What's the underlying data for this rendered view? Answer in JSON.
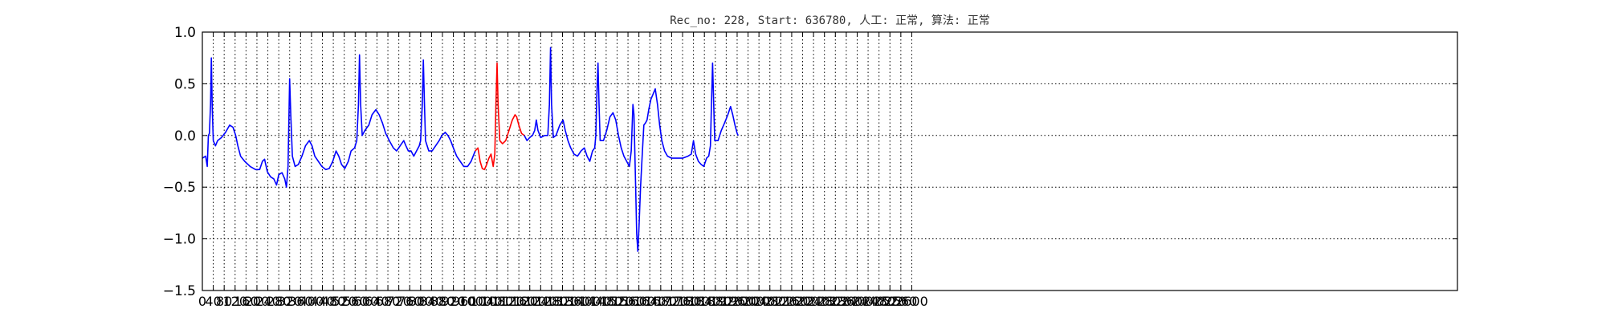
{
  "chart_data": {
    "type": "line",
    "title": "Rec_no: 228, Start: 636780, 人工: 正常, 算法: 正常",
    "xlabel": "",
    "ylabel": "",
    "xlim": [
      0,
      4600
    ],
    "ylim": [
      -1.5,
      1.0
    ],
    "grid": true,
    "yticks": [
      "−1.5",
      "−1.0",
      "−0.5",
      "0.0",
      "0.5",
      "1.0"
    ],
    "ytick_values": [
      -1.5,
      -1.0,
      -0.5,
      0.0,
      0.5,
      1.0
    ],
    "xticks": [
      "0",
      "40",
      "80",
      "120",
      "160",
      "200",
      "240",
      "280",
      "320",
      "360",
      "400",
      "440",
      "480",
      "520",
      "560",
      "600",
      "640",
      "680",
      "720",
      "760",
      "800",
      "840",
      "880",
      "920",
      "960",
      "1000",
      "1040",
      "1080",
      "1120",
      "1160",
      "1200",
      "1240",
      "1280",
      "1320",
      "1360",
      "1400",
      "1440",
      "1480",
      "1520",
      "1560",
      "1600",
      "1640",
      "1680",
      "1720",
      "1760",
      "1800",
      "1840",
      "1880",
      "1920",
      "1960",
      "2000",
      "2040",
      "2080",
      "2120",
      "2160",
      "2200",
      "2240",
      "2280",
      "2320",
      "2360",
      "2400",
      "2440",
      "2480",
      "2520",
      "2560",
      "2600"
    ],
    "xtick_values": [
      0,
      40,
      80,
      120,
      160,
      200,
      240,
      280,
      320,
      360,
      400,
      440,
      480,
      520,
      560,
      600,
      640,
      680,
      720,
      760,
      800,
      840,
      880,
      920,
      960,
      1000,
      1040,
      1080,
      1120,
      1160,
      1200,
      1240,
      1280,
      1320,
      1360,
      1400,
      1440,
      1480,
      1520,
      1560,
      1600,
      1640,
      1680,
      1720,
      1760,
      1800,
      1840,
      1880,
      1920,
      1960,
      2000,
      2040,
      2080,
      2120,
      2160,
      2200,
      2240,
      2280,
      2320,
      2360,
      2400,
      2440,
      2480,
      2520,
      2560,
      2600
    ],
    "series": [
      {
        "color": "#0000ff",
        "points": [
          [
            0,
            -0.22
          ],
          [
            12,
            -0.2
          ],
          [
            18,
            -0.3
          ],
          [
            22,
            0.0
          ],
          [
            26,
            0.02
          ],
          [
            30,
            0.3
          ],
          [
            33,
            0.75
          ],
          [
            36,
            0.3
          ],
          [
            40,
            -0.05
          ],
          [
            48,
            -0.1
          ],
          [
            56,
            -0.05
          ],
          [
            70,
            -0.02
          ],
          [
            85,
            0.03
          ],
          [
            100,
            0.1
          ],
          [
            112,
            0.08
          ],
          [
            122,
            0.0
          ],
          [
            130,
            -0.1
          ],
          [
            140,
            -0.2
          ],
          [
            155,
            -0.25
          ],
          [
            175,
            -0.3
          ],
          [
            195,
            -0.33
          ],
          [
            210,
            -0.33
          ],
          [
            220,
            -0.25
          ],
          [
            228,
            -0.23
          ],
          [
            238,
            -0.35
          ],
          [
            250,
            -0.4
          ],
          [
            262,
            -0.42
          ],
          [
            272,
            -0.48
          ],
          [
            280,
            -0.38
          ],
          [
            292,
            -0.36
          ],
          [
            302,
            -0.42
          ],
          [
            308,
            -0.5
          ],
          [
            314,
            -0.3
          ],
          [
            320,
            0.55
          ],
          [
            324,
            0.2
          ],
          [
            330,
            -0.2
          ],
          [
            340,
            -0.3
          ],
          [
            352,
            -0.28
          ],
          [
            365,
            -0.2
          ],
          [
            378,
            -0.1
          ],
          [
            392,
            -0.05
          ],
          [
            402,
            -0.1
          ],
          [
            412,
            -0.2
          ],
          [
            425,
            -0.25
          ],
          [
            438,
            -0.3
          ],
          [
            452,
            -0.33
          ],
          [
            465,
            -0.32
          ],
          [
            478,
            -0.25
          ],
          [
            490,
            -0.15
          ],
          [
            500,
            -0.2
          ],
          [
            510,
            -0.28
          ],
          [
            522,
            -0.32
          ],
          [
            535,
            -0.25
          ],
          [
            545,
            -0.15
          ],
          [
            558,
            -0.12
          ],
          [
            566,
            -0.05
          ],
          [
            572,
            0.3
          ],
          [
            576,
            0.78
          ],
          [
            580,
            0.3
          ],
          [
            586,
            0.0
          ],
          [
            596,
            0.05
          ],
          [
            610,
            0.1
          ],
          [
            622,
            0.2
          ],
          [
            636,
            0.25
          ],
          [
            648,
            0.2
          ],
          [
            660,
            0.12
          ],
          [
            672,
            0.02
          ],
          [
            685,
            -0.05
          ],
          [
            700,
            -0.12
          ],
          [
            712,
            -0.15
          ],
          [
            725,
            -0.1
          ],
          [
            738,
            -0.05
          ],
          [
            746,
            -0.1
          ],
          [
            755,
            -0.15
          ],
          [
            765,
            -0.15
          ],
          [
            775,
            -0.2
          ],
          [
            785,
            -0.15
          ],
          [
            795,
            -0.1
          ],
          [
            800,
            -0.05
          ],
          [
            806,
            0.3
          ],
          [
            810,
            0.73
          ],
          [
            814,
            0.3
          ],
          [
            818,
            -0.05
          ],
          [
            830,
            -0.15
          ],
          [
            842,
            -0.15
          ],
          [
            855,
            -0.1
          ],
          [
            868,
            -0.05
          ],
          [
            878,
            0.0
          ],
          [
            890,
            0.03
          ],
          [
            900,
            0.0
          ],
          [
            910,
            -0.05
          ],
          [
            920,
            -0.12
          ],
          [
            932,
            -0.2
          ],
          [
            945,
            -0.25
          ],
          [
            958,
            -0.3
          ],
          [
            972,
            -0.3
          ],
          [
            985,
            -0.25
          ],
          [
            1000,
            -0.15
          ]
        ]
      },
      {
        "color": "#ff0000",
        "points": [
          [
            1000,
            -0.15
          ],
          [
            1010,
            -0.12
          ],
          [
            1018,
            -0.25
          ],
          [
            1026,
            -0.32
          ],
          [
            1034,
            -0.33
          ],
          [
            1042,
            -0.28
          ],
          [
            1050,
            -0.22
          ],
          [
            1058,
            -0.18
          ],
          [
            1066,
            -0.3
          ],
          [
            1072,
            -0.18
          ],
          [
            1076,
            0.3
          ],
          [
            1080,
            0.7
          ],
          [
            1084,
            0.3
          ],
          [
            1090,
            -0.05
          ],
          [
            1100,
            -0.08
          ],
          [
            1112,
            -0.05
          ],
          [
            1124,
            0.05
          ],
          [
            1136,
            0.15
          ],
          [
            1146,
            0.2
          ],
          [
            1152,
            0.18
          ],
          [
            1160,
            0.1
          ],
          [
            1170,
            0.02
          ],
          [
            1180,
            0.0
          ]
        ]
      },
      {
        "color": "#0000ff",
        "points": [
          [
            1180,
            0.0
          ],
          [
            1190,
            -0.05
          ],
          [
            1200,
            -0.02
          ],
          [
            1210,
            0.0
          ],
          [
            1218,
            0.05
          ],
          [
            1224,
            0.15
          ],
          [
            1230,
            0.05
          ],
          [
            1240,
            -0.02
          ],
          [
            1255,
            0.0
          ],
          [
            1266,
            0.0
          ],
          [
            1272,
            0.3
          ],
          [
            1276,
            0.85
          ],
          [
            1280,
            0.3
          ],
          [
            1286,
            -0.02
          ],
          [
            1296,
            0.0
          ],
          [
            1310,
            0.1
          ],
          [
            1322,
            0.15
          ],
          [
            1330,
            0.05
          ],
          [
            1340,
            -0.05
          ],
          [
            1350,
            -0.12
          ],
          [
            1362,
            -0.18
          ],
          [
            1375,
            -0.2
          ],
          [
            1388,
            -0.15
          ],
          [
            1400,
            -0.12
          ],
          [
            1410,
            -0.2
          ],
          [
            1420,
            -0.25
          ],
          [
            1430,
            -0.15
          ],
          [
            1438,
            -0.12
          ],
          [
            1442,
            0.0
          ],
          [
            1446,
            0.4
          ],
          [
            1450,
            0.7
          ],
          [
            1454,
            0.3
          ],
          [
            1458,
            -0.05
          ],
          [
            1470,
            -0.05
          ],
          [
            1482,
            0.05
          ],
          [
            1494,
            0.18
          ],
          [
            1505,
            0.22
          ],
          [
            1515,
            0.15
          ],
          [
            1525,
            0.0
          ],
          [
            1535,
            -0.12
          ],
          [
            1545,
            -0.2
          ],
          [
            1555,
            -0.25
          ],
          [
            1565,
            -0.3
          ],
          [
            1572,
            -0.15
          ],
          [
            1578,
            0.3
          ],
          [
            1582,
            0.2
          ],
          [
            1588,
            -0.5
          ],
          [
            1592,
            -0.95
          ],
          [
            1596,
            -1.12
          ],
          [
            1600,
            -0.9
          ],
          [
            1606,
            -0.5
          ],
          [
            1612,
            -0.2
          ],
          [
            1618,
            0.1
          ],
          [
            1624,
            0.12
          ],
          [
            1630,
            0.15
          ],
          [
            1636,
            0.25
          ],
          [
            1644,
            0.35
          ],
          [
            1652,
            0.4
          ],
          [
            1660,
            0.45
          ],
          [
            1668,
            0.3
          ],
          [
            1676,
            0.1
          ],
          [
            1684,
            -0.05
          ],
          [
            1694,
            -0.15
          ],
          [
            1705,
            -0.2
          ],
          [
            1720,
            -0.22
          ],
          [
            1740,
            -0.22
          ],
          [
            1760,
            -0.22
          ],
          [
            1780,
            -0.2
          ],
          [
            1792,
            -0.18
          ],
          [
            1800,
            -0.05
          ],
          [
            1808,
            -0.18
          ],
          [
            1818,
            -0.25
          ],
          [
            1828,
            -0.28
          ],
          [
            1838,
            -0.3
          ],
          [
            1848,
            -0.22
          ],
          [
            1856,
            -0.2
          ],
          [
            1862,
            -0.1
          ],
          [
            1866,
            0.3
          ],
          [
            1870,
            0.7
          ],
          [
            1874,
            0.3
          ],
          [
            1878,
            -0.05
          ],
          [
            1890,
            -0.05
          ],
          [
            1902,
            0.05
          ],
          [
            1914,
            0.12
          ],
          [
            1926,
            0.2
          ],
          [
            1936,
            0.28
          ],
          [
            1944,
            0.2
          ],
          [
            1952,
            0.1
          ],
          [
            1960,
            0.02
          ],
          [
            1964,
            0.0
          ]
        ]
      }
    ]
  }
}
